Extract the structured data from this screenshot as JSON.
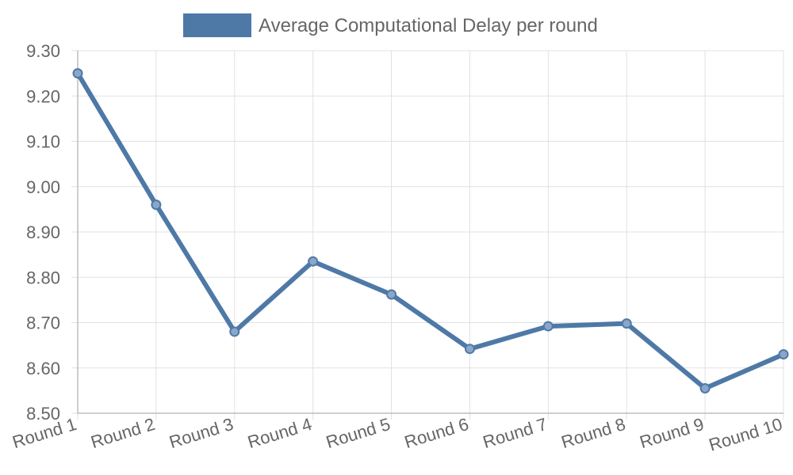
{
  "chart_data": {
    "type": "line",
    "title": "",
    "xlabel": "",
    "ylabel": "",
    "categories": [
      "Round 1",
      "Round 2",
      "Round 3",
      "Round 4",
      "Round 5",
      "Round 6",
      "Round 7",
      "Round 8",
      "Round 9",
      "Round 10"
    ],
    "series": [
      {
        "name": "Average Computational Delay per round",
        "color": "#4e79a7",
        "values": [
          9.25,
          8.96,
          8.68,
          8.835,
          8.762,
          8.642,
          8.692,
          8.698,
          8.555,
          8.63
        ]
      }
    ],
    "ylim": [
      8.5,
      9.3
    ],
    "yticks": [
      "8.50",
      "8.60",
      "8.70",
      "8.80",
      "8.90",
      "9.00",
      "9.10",
      "9.20",
      "9.30"
    ],
    "grid": true,
    "legend_position": "top"
  }
}
